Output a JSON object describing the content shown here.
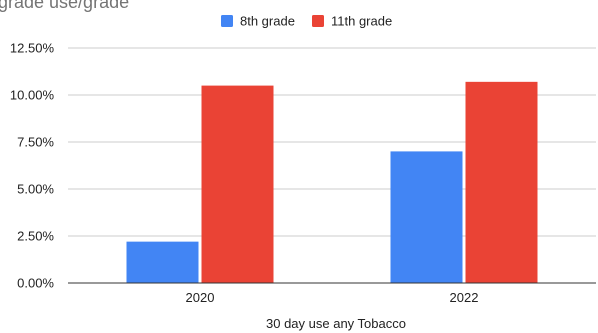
{
  "chart_data": {
    "type": "bar",
    "title": "",
    "title_partial_visible": "grade use/grade",
    "xlabel": "30 day use any Tobacco",
    "ylabel": "",
    "categories": [
      "2020",
      "2022"
    ],
    "series": [
      {
        "name": "8th grade",
        "values": [
          0.022,
          0.07
        ],
        "color": "#4285f4"
      },
      {
        "name": "11th grade",
        "values": [
          0.105,
          0.107
        ],
        "color": "#ea4335"
      }
    ],
    "ylim": [
      0,
      0.125
    ],
    "y_ticks": [
      0,
      0.025,
      0.05,
      0.075,
      0.1,
      0.125
    ],
    "y_tick_labels": [
      "0.00%",
      "2.50%",
      "5.00%",
      "7.50%",
      "10.00%",
      "12.50%"
    ],
    "grid": true,
    "legend_position": "top-center"
  }
}
